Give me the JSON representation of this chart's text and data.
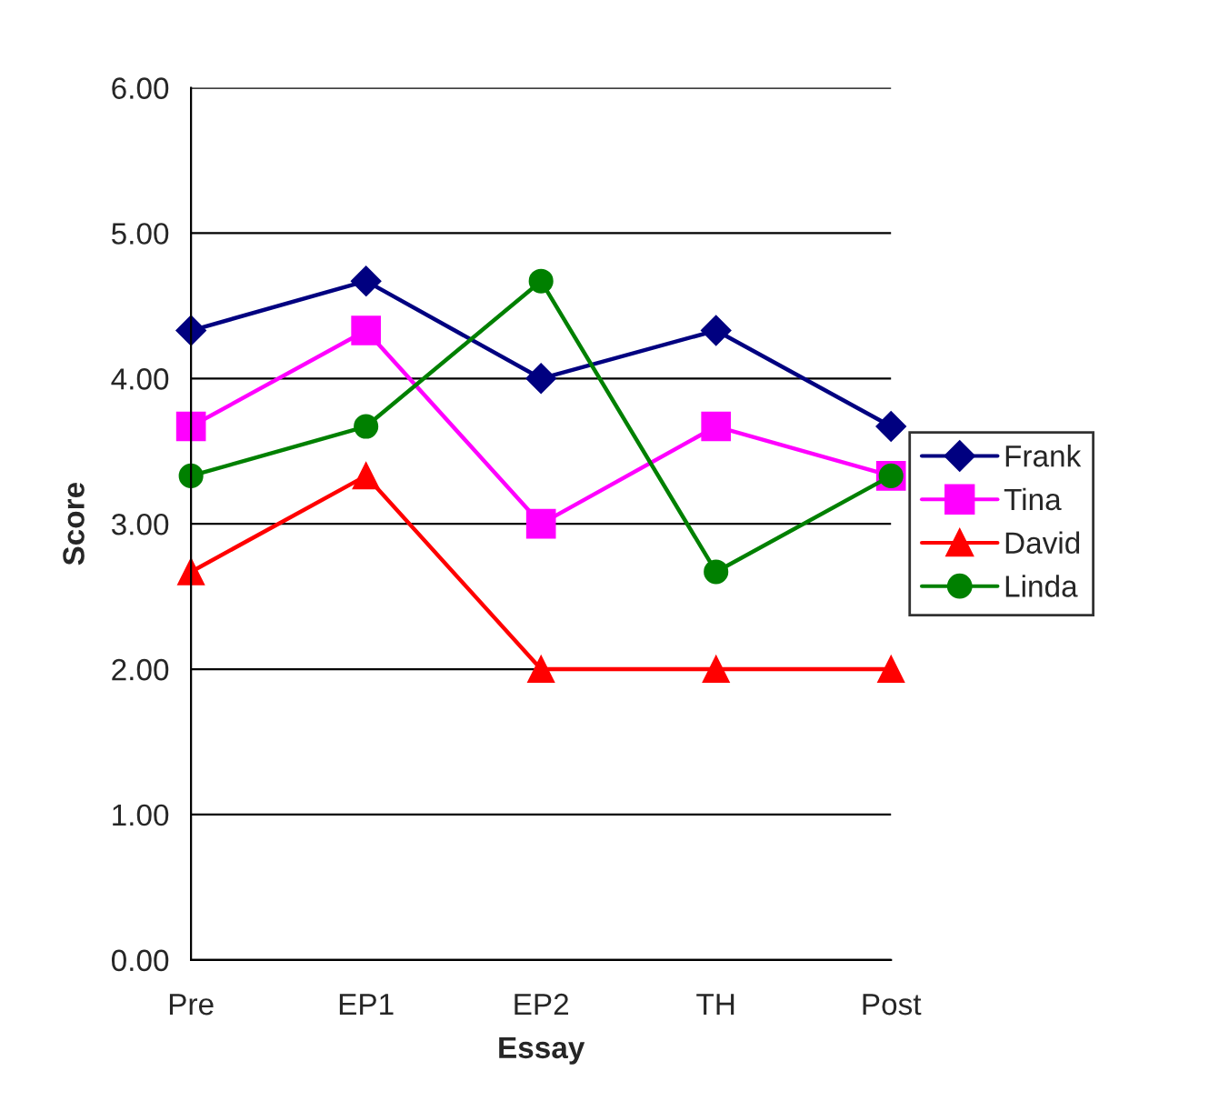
{
  "chart_data": {
    "type": "line",
    "xlabel": "Essay",
    "ylabel": "Score",
    "categories": [
      "Pre",
      "EP1",
      "EP2",
      "TH",
      "Post"
    ],
    "series": [
      {
        "name": "Frank",
        "color": "#000080",
        "marker": "diamond",
        "values": [
          4.33,
          4.67,
          4.0,
          4.33,
          3.67
        ]
      },
      {
        "name": "Tina",
        "color": "#ff00ff",
        "marker": "square",
        "values": [
          3.67,
          4.33,
          3.0,
          3.67,
          3.33
        ]
      },
      {
        "name": "David",
        "color": "#ff0000",
        "marker": "triangle",
        "values": [
          2.67,
          3.33,
          2.0,
          2.0,
          2.0
        ]
      },
      {
        "name": "Linda",
        "color": "#008000",
        "marker": "circle",
        "values": [
          3.33,
          3.67,
          4.67,
          2.67,
          3.33
        ]
      }
    ],
    "ylim": [
      0,
      6
    ],
    "yticks": [
      {
        "value": 0,
        "label": "0.00"
      },
      {
        "value": 1,
        "label": "1.00"
      },
      {
        "value": 2,
        "label": "2.00"
      },
      {
        "value": 3,
        "label": "3.00"
      },
      {
        "value": 4,
        "label": "4.00"
      },
      {
        "value": 5,
        "label": "5.00"
      },
      {
        "value": 6,
        "label": "6.00"
      }
    ],
    "grid": "y",
    "legend": "right",
    "line_style": "solid"
  }
}
